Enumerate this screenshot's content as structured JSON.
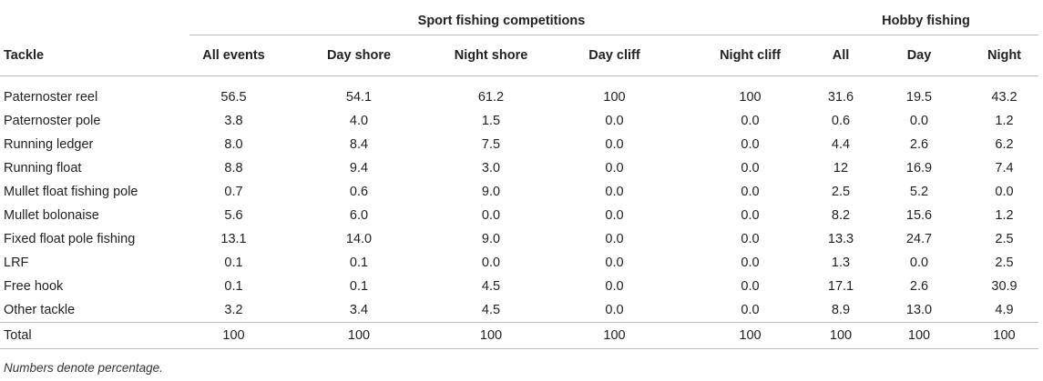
{
  "table": {
    "group_headers": {
      "sport": "Sport fishing competitions",
      "hobby": "Hobby fishing"
    },
    "columns": [
      "Tackle",
      "All events",
      "Day shore",
      "Night shore",
      "Day cliff",
      "Night cliff",
      "All",
      "Day",
      "Night"
    ],
    "rows": [
      [
        "Paternoster reel",
        "56.5",
        "54.1",
        "61.2",
        "100",
        "100",
        "31.6",
        "19.5",
        "43.2"
      ],
      [
        "Paternoster pole",
        "3.8",
        "4.0",
        "1.5",
        "0.0",
        "0.0",
        "0.6",
        "0.0",
        "1.2"
      ],
      [
        "Running ledger",
        "8.0",
        "8.4",
        "7.5",
        "0.0",
        "0.0",
        "4.4",
        "2.6",
        "6.2"
      ],
      [
        "Running float",
        "8.8",
        "9.4",
        "3.0",
        "0.0",
        "0.0",
        "12",
        "16.9",
        "7.4"
      ],
      [
        "Mullet float fishing pole",
        "0.7",
        "0.6",
        "9.0",
        "0.0",
        "0.0",
        "2.5",
        "5.2",
        "0.0"
      ],
      [
        "Mullet bolonaise",
        "5.6",
        "6.0",
        "0.0",
        "0.0",
        "0.0",
        "8.2",
        "15.6",
        "1.2"
      ],
      [
        "Fixed float pole fishing",
        "13.1",
        "14.0",
        "9.0",
        "0.0",
        "0.0",
        "13.3",
        "24.7",
        "2.5"
      ],
      [
        "LRF",
        "0.1",
        "0.1",
        "0.0",
        "0.0",
        "0.0",
        "1.3",
        "0.0",
        "2.5"
      ],
      [
        "Free hook",
        "0.1",
        "0.1",
        "4.5",
        "0.0",
        "0.0",
        "17.1",
        "2.6",
        "30.9"
      ],
      [
        "Other tackle",
        "3.2",
        "3.4",
        "4.5",
        "0.0",
        "0.0",
        "8.9",
        "13.0",
        "4.9"
      ]
    ],
    "total": [
      "Total",
      "100",
      "100",
      "100",
      "100",
      "100",
      "100",
      "100",
      "100"
    ]
  },
  "footnote": "Numbers denote percentage."
}
